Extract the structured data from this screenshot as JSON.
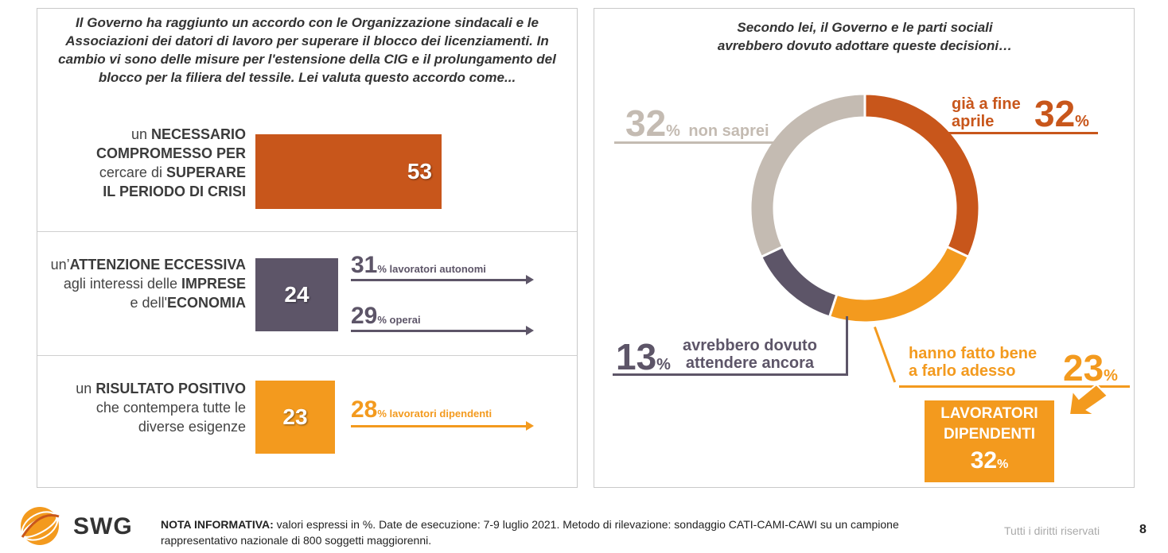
{
  "left": {
    "question": "Il Governo ha raggiunto un accordo con le Organizzazione sindacali e le Associazioni dei datori di lavoro per superare il blocco dei licenziamenti. In cambio vi sono delle misure per l'estensione della CIG e il prolungamento del blocco per la filiera del tessile. Lei valuta questo accordo come...",
    "options": [
      {
        "label_lines": [
          [
            {
              "t": "un ",
              "b": false
            },
            {
              "t": "NECESSARIO",
              "b": true
            }
          ],
          [
            {
              "t": "COMPROMESSO PER",
              "b": true
            }
          ],
          [
            {
              "t": "cercare di ",
              "b": false
            },
            {
              "t": "SUPERARE",
              "b": true
            }
          ],
          [
            {
              "t": "IL PERIODO DI CRISI",
              "b": true
            }
          ]
        ],
        "value": "53",
        "color": "#c8561b"
      },
      {
        "label_lines": [
          [
            {
              "t": "un’",
              "b": false
            },
            {
              "t": "ATTENZIONE ECCESSIVA",
              "b": true
            }
          ],
          [
            {
              "t": "agli interessi delle ",
              "b": false
            },
            {
              "t": "IMPRESE",
              "b": true
            }
          ],
          [
            {
              "t": "e dell'",
              "b": false
            },
            {
              "t": "ECONOMIA",
              "b": true
            }
          ]
        ],
        "value": "24",
        "color": "#5d5568",
        "subs": [
          {
            "num": "31",
            "pct": "%",
            "label": " lavoratori autonomi"
          },
          {
            "num": "29",
            "pct": "%",
            "label": " operai"
          }
        ]
      },
      {
        "label_lines": [
          [
            {
              "t": "un ",
              "b": false
            },
            {
              "t": "RISULTATO POSITIVO",
              "b": true
            }
          ],
          [
            {
              "t": "che contempera tutte le",
              "b": false
            }
          ],
          [
            {
              "t": "diverse esigenze",
              "b": false
            }
          ]
        ],
        "value": "23",
        "color": "#f39a1e",
        "subs": [
          {
            "num": "28",
            "pct": "%",
            "label": " lavoratori dipendenti"
          }
        ]
      }
    ]
  },
  "right": {
    "question_lines": [
      "Secondo lei, il Governo e le parti sociali",
      "avrebbero dovuto adottare queste decisioni…"
    ],
    "labels": {
      "fine_aprile": [
        "già a fine",
        "aprile"
      ],
      "fine_aprile_num": "32",
      "adesso": [
        "hanno fatto bene",
        "a farlo adesso"
      ],
      "adesso_num": "23",
      "attendere": [
        "avrebbero dovuto",
        "attendere ancora"
      ],
      "attendere_num": "13",
      "non_saprei": "non saprei",
      "non_saprei_num": "32",
      "pct": "%"
    },
    "box": {
      "line1": "LAVORATORI",
      "line2": "DIPENDENTI",
      "num": "32",
      "pct": "%"
    }
  },
  "chart_data": {
    "type": "pie",
    "donut": true,
    "slices": [
      {
        "label": "già a fine aprile",
        "value": 32,
        "color": "#c8561b"
      },
      {
        "label": "hanno fatto bene a farlo adesso",
        "value": 23,
        "color": "#f39a1e"
      },
      {
        "label": "avrebbero dovuto attendere ancora",
        "value": 13,
        "color": "#5d5568"
      },
      {
        "label": "non saprei",
        "value": 32,
        "color": "#c4bbb2"
      }
    ]
  },
  "footer": {
    "note_bold": "NOTA INFORMATIVA:",
    "note": " valori espressi in %. Date de esecuzione: 7-9 luglio 2021. Metodo di rilevazione: sondaggio CATI-CAMI-CAWI su un campione rappresentativo nazionale di 800 soggetti maggiorenni.",
    "rights": "Tutti i diritti riservati",
    "page": "8",
    "logo_text": "SWG"
  }
}
